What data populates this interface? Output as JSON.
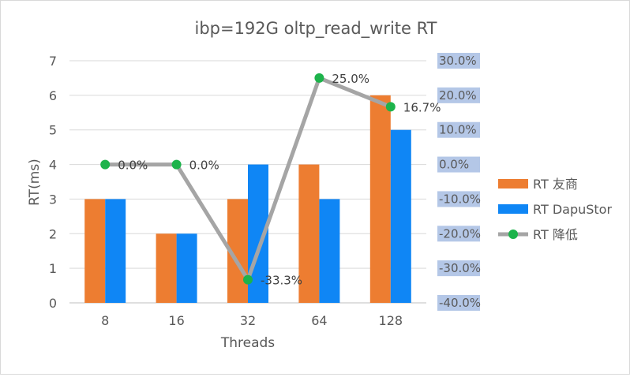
{
  "chart_data": {
    "type": "bar",
    "title": "ibp=192G oltp_read_write RT",
    "xlabel": "Threads",
    "ylabel": "RT(ms)",
    "ylim": [
      0,
      7
    ],
    "y_ticks": [
      "0",
      "1",
      "2",
      "3",
      "4",
      "5",
      "6",
      "7"
    ],
    "y2lim": [
      -40,
      30
    ],
    "y2_ticks": [
      "-40.0%",
      "-30.0%",
      "-20.0%",
      "-10.0%",
      "0.0%",
      "10.0%",
      "20.0%",
      "30.0%"
    ],
    "categories": [
      "8",
      "16",
      "32",
      "64",
      "128"
    ],
    "series": [
      {
        "name": "RT 友商",
        "type": "bar",
        "axis": "left",
        "color": "#ed7d31",
        "values": [
          3,
          2,
          3,
          4,
          6
        ]
      },
      {
        "name": "RT DapuStor",
        "type": "bar",
        "axis": "left",
        "color": "#0f86f5",
        "values": [
          3,
          2,
          4,
          3,
          5
        ]
      },
      {
        "name": "RT 降低",
        "type": "line",
        "axis": "right",
        "color": "#a5a5a5",
        "marker_color": "#1db34b",
        "values": [
          0.0,
          0.0,
          -33.3,
          25.0,
          16.7
        ],
        "labels": [
          "0.0%",
          "0.0%",
          "-33.3%",
          "25.0%",
          "16.7%"
        ]
      }
    ],
    "grid": true,
    "legend": "right"
  }
}
